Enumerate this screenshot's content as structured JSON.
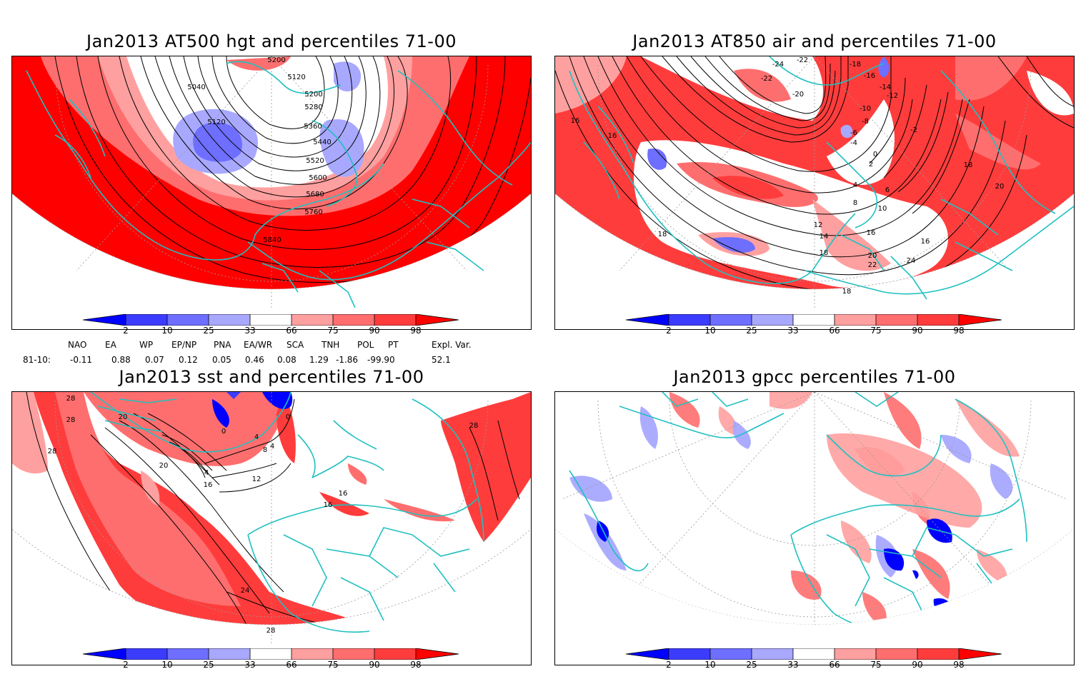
{
  "panels": [
    {
      "id": "hgt",
      "title": "Jan2013 AT500 hgt and percentiles 71-00",
      "contour_labels": [
        "5200",
        "5120",
        "5040",
        "5200",
        "5280",
        "5120",
        "5360",
        "5440",
        "5520",
        "5600",
        "5680",
        "5760",
        "5840"
      ]
    },
    {
      "id": "air",
      "title": "Jan2013 AT850 air and percentiles 71-00",
      "contour_labels": [
        "-24",
        "-22",
        "-22",
        "-18",
        "-16",
        "-20",
        "-14",
        "-12",
        "-10",
        "-8",
        "-6",
        "-4",
        "-2",
        "0",
        "2",
        "4",
        "6",
        "8",
        "10",
        "12",
        "14",
        "16",
        "18",
        "20",
        "22",
        "24",
        "16",
        "16",
        "16",
        "18",
        "20",
        "18",
        "18"
      ]
    },
    {
      "id": "sst",
      "title": "Jan2013 sst and percentiles 71-00",
      "contour_labels": [
        "28",
        "28",
        "28",
        "20",
        "20",
        "4",
        "0",
        "0",
        "4",
        "8",
        "4",
        "16",
        "12",
        "16",
        "16",
        "24",
        "28",
        "28"
      ]
    },
    {
      "id": "gpcc",
      "title": "Jan2013 gpcc percentiles 71-00",
      "contour_labels": []
    }
  ],
  "colorbar": {
    "labels": [
      "2",
      "10",
      "25",
      "33",
      "66",
      "75",
      "90",
      "98"
    ],
    "colors": {
      "b1": "#0000ff",
      "b2": "#3c3cff",
      "b3": "#6e6eff",
      "b4": "#a8a8ff",
      "r1": "#ffa0a0",
      "r2": "#ff6e6e",
      "r3": "#ff3c3c",
      "r4": "#ff0000"
    }
  },
  "indices": {
    "headers": [
      "NAO",
      "EA",
      "WP",
      "EP/NP",
      "PNA",
      "EA/WR",
      "SCA",
      "TNH",
      "POL",
      "PT",
      "Expl. Var."
    ],
    "row_label": "81-10:",
    "values": [
      "-0.11",
      "0.88",
      "0.07",
      "0.12",
      "0.05",
      "0.46",
      "0.08",
      "1.29",
      "-1.86",
      "-99.90",
      "52.1"
    ]
  },
  "map_colors": {
    "coast": "#20c0c0",
    "contour": "#000000",
    "grid": "#999999"
  }
}
